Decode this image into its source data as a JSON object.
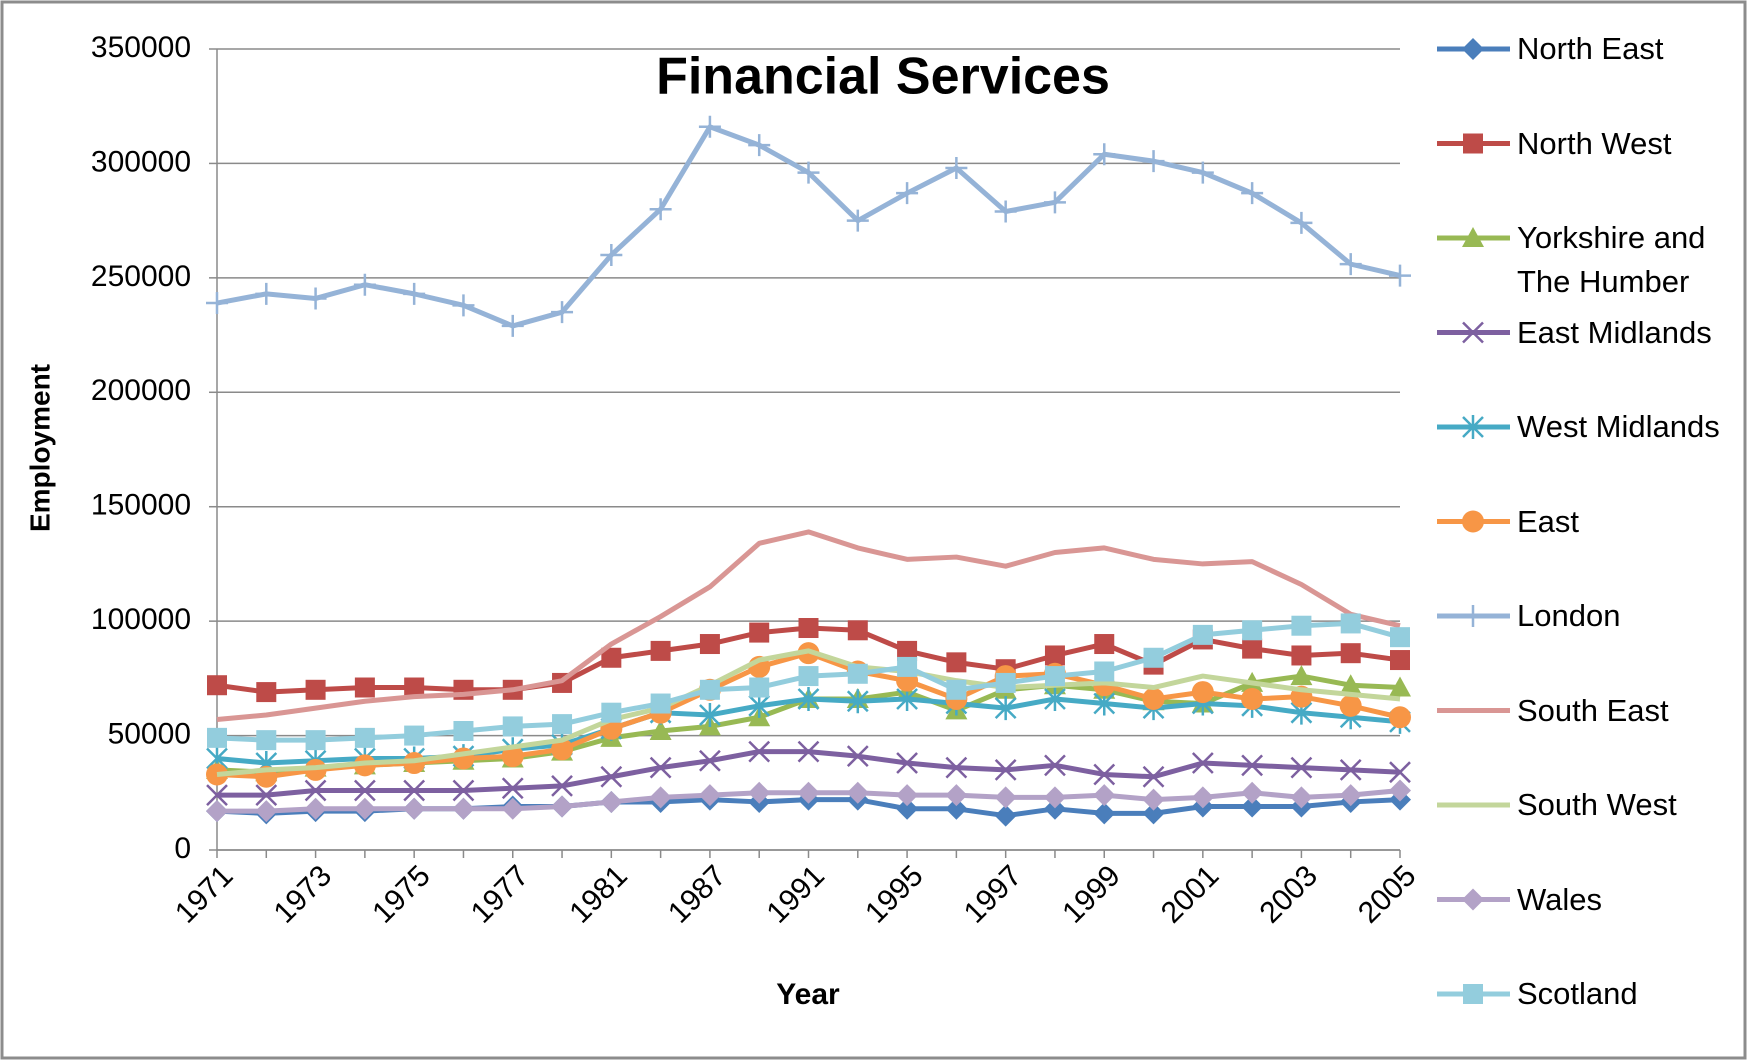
{
  "chart_data": {
    "type": "line",
    "title": "Financial Services",
    "x_label": "Year",
    "y_label": "Employment",
    "categories": [
      "1971",
      null,
      "1973",
      null,
      "1975",
      null,
      "1977",
      null,
      "1981",
      null,
      "1987",
      null,
      "1991",
      null,
      "1995",
      null,
      "1997",
      null,
      "1999",
      null,
      "2001",
      null,
      "2003",
      null,
      "2005"
    ],
    "ylim": [
      0,
      350000
    ],
    "yticks": [
      0,
      50000,
      100000,
      150000,
      200000,
      250000,
      300000,
      350000
    ],
    "grid": true,
    "legend": "right",
    "series": [
      {
        "name": "North East",
        "color": "#4a7ebb",
        "marker": "diamond",
        "values": [
          17000,
          16000,
          17000,
          17000,
          18000,
          18000,
          19000,
          19000,
          21000,
          21000,
          22000,
          21000,
          22000,
          22000,
          18000,
          18000,
          15000,
          18000,
          16000,
          16000,
          19000,
          19000,
          19000,
          21000,
          22000
        ]
      },
      {
        "name": "North West",
        "color": "#be4b48",
        "marker": "square",
        "values": [
          72000,
          69000,
          70000,
          71000,
          71000,
          70000,
          70000,
          73000,
          84000,
          87000,
          90000,
          95000,
          97000,
          96000,
          87000,
          82000,
          79000,
          85000,
          90000,
          81000,
          92000,
          88000,
          85000,
          86000,
          83000
        ]
      },
      {
        "name": "Yorkshire and The Humber",
        "color": "#98b954",
        "marker": "triangle",
        "values": [
          35000,
          34000,
          36000,
          37000,
          38000,
          39000,
          40000,
          43000,
          49000,
          52000,
          54000,
          58000,
          66000,
          66000,
          69000,
          61000,
          70000,
          72000,
          70000,
          65000,
          64000,
          73000,
          76000,
          72000,
          71000
        ]
      },
      {
        "name": "East Midlands",
        "color": "#7d60a0",
        "marker": "x",
        "values": [
          24000,
          24000,
          26000,
          26000,
          26000,
          26000,
          27000,
          28000,
          32000,
          36000,
          39000,
          43000,
          43000,
          41000,
          38000,
          36000,
          35000,
          37000,
          33000,
          32000,
          38000,
          37000,
          36000,
          35000,
          34000
        ]
      },
      {
        "name": "West Midlands",
        "color": "#46aac5",
        "marker": "star",
        "values": [
          40000,
          38000,
          39000,
          40000,
          40000,
          41000,
          44000,
          46000,
          53000,
          60000,
          59000,
          63000,
          66000,
          65000,
          66000,
          64000,
          62000,
          66000,
          64000,
          62000,
          64000,
          63000,
          60000,
          58000,
          56000
        ]
      },
      {
        "name": "East",
        "color": "#f79646",
        "marker": "circle",
        "values": [
          33000,
          32000,
          35000,
          37000,
          38000,
          40000,
          41000,
          44000,
          53000,
          60000,
          70000,
          80000,
          86000,
          78000,
          74000,
          66000,
          76000,
          77000,
          72000,
          66000,
          69000,
          66000,
          67000,
          63000,
          58000
        ]
      },
      {
        "name": "London",
        "color": "#95b3d7",
        "marker": "plus",
        "values": [
          239000,
          243000,
          241000,
          247000,
          243000,
          238000,
          229000,
          235000,
          260000,
          280000,
          316000,
          308000,
          296000,
          275000,
          287000,
          298000,
          279000,
          283000,
          304000,
          301000,
          296000,
          287000,
          274000,
          256000,
          251000
        ]
      },
      {
        "name": "South East",
        "color": "#d99694",
        "values": [
          57000,
          59000,
          62000,
          65000,
          67000,
          68000,
          70000,
          74000,
          90000,
          102000,
          115000,
          134000,
          139000,
          132000,
          127000,
          128000,
          124000,
          130000,
          132000,
          127000,
          125000,
          126000,
          116000,
          103000,
          98000
        ]
      },
      {
        "name": "South West",
        "color": "#c3d69b",
        "values": [
          33000,
          35000,
          36000,
          38000,
          39000,
          42000,
          45000,
          48000,
          57000,
          62000,
          72000,
          83000,
          87000,
          80000,
          78000,
          74000,
          71000,
          72000,
          73000,
          71000,
          76000,
          73000,
          70000,
          68000,
          66000
        ]
      },
      {
        "name": "Wales",
        "color": "#b3a2c7",
        "marker": "diamond",
        "values": [
          17000,
          17000,
          18000,
          18000,
          18000,
          18000,
          18000,
          19000,
          21000,
          23000,
          24000,
          25000,
          25000,
          25000,
          24000,
          24000,
          23000,
          23000,
          24000,
          22000,
          23000,
          25000,
          23000,
          24000,
          26000
        ]
      },
      {
        "name": "Scotland",
        "color": "#93cddd",
        "marker": "square",
        "values": [
          49000,
          48000,
          48000,
          49000,
          50000,
          52000,
          54000,
          55000,
          60000,
          64000,
          70000,
          71000,
          76000,
          77000,
          80000,
          70000,
          73000,
          76000,
          78000,
          84000,
          94000,
          96000,
          98000,
          99000,
          93000
        ]
      }
    ]
  }
}
